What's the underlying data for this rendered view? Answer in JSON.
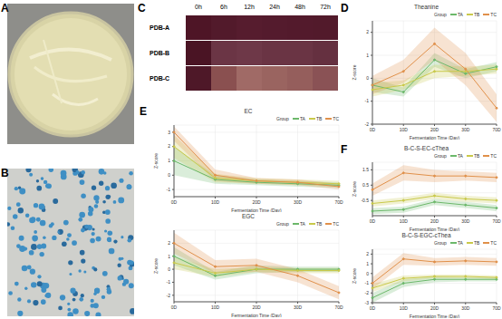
{
  "panel_labels": [
    "A",
    "B",
    "C",
    "D",
    "E",
    "F"
  ],
  "heatmap": {
    "columns": [
      "0h",
      "6h",
      "12h",
      "24h",
      "48h",
      "72h"
    ],
    "rows": [
      "PDB-A",
      "PDB-B",
      "PDB-C"
    ],
    "colors": [
      [
        "#4e1526",
        "#521a2b",
        "#561c2e",
        "#541b2d",
        "#531a2c",
        "#521a2b"
      ],
      [
        "#4a1424",
        "#6b3545",
        "#6e3848",
        "#6a3444",
        "#6a3444",
        "#653040"
      ],
      [
        "#4e1828",
        "#8a5050",
        "#a06a66",
        "#9a6460",
        "#955e5c",
        "#8a5255"
      ]
    ]
  },
  "chart_data": [
    {
      "type": "line",
      "title": "Theanine",
      "x_label": "Fermentation Time (Day)",
      "y_label": "Z-score",
      "legend": "upper right",
      "legend_title": "Group",
      "grid": true,
      "categories": [
        "0D",
        "10D",
        "20D",
        "30D",
        "70D"
      ],
      "ylim": [
        -2,
        2.5
      ],
      "yticks": [
        -2,
        -1,
        0,
        1,
        2
      ],
      "series": [
        {
          "name": "TA",
          "color": "#6cb86a",
          "values": [
            -0.3,
            -0.6,
            0.8,
            0.2,
            0.5
          ],
          "lower": [
            -0.6,
            -0.8,
            0.5,
            0,
            0.3
          ],
          "upper": [
            0,
            -0.4,
            1.1,
            0.4,
            0.7
          ]
        },
        {
          "name": "TB",
          "color": "#c9c94a",
          "values": [
            -0.5,
            -0.3,
            0.3,
            0.3,
            0.4
          ],
          "lower": [
            -0.8,
            -0.5,
            0,
            0.1,
            0.2
          ],
          "upper": [
            -0.2,
            -0.1,
            0.6,
            0.5,
            0.6
          ]
        },
        {
          "name": "TC",
          "color": "#e0904a",
          "values": [
            -0.3,
            0.3,
            1.5,
            0.4,
            -1.3
          ],
          "lower": [
            -0.7,
            -0.2,
            0.8,
            -0.3,
            -1.9
          ],
          "upper": [
            0.1,
            0.8,
            2.2,
            1.1,
            -0.7
          ]
        }
      ]
    },
    {
      "type": "line",
      "title": "EC",
      "x_label": "Fermentation Time (Day)",
      "y_label": "Z-score",
      "legend": "upper right",
      "legend_title": "Group",
      "grid": true,
      "categories": [
        "0D",
        "10D",
        "20D",
        "30D",
        "70D"
      ],
      "ylim": [
        -1.5,
        3.5
      ],
      "yticks": [
        -1,
        0,
        1,
        2,
        3
      ],
      "series": [
        {
          "name": "TA",
          "color": "#6cb86a",
          "values": [
            1.0,
            -0.3,
            -0.5,
            -0.6,
            -0.7
          ],
          "lower": [
            0,
            -0.6,
            -0.7,
            -0.8,
            -0.9
          ],
          "upper": [
            2,
            0,
            -0.3,
            -0.4,
            -0.5
          ]
        },
        {
          "name": "TB",
          "color": "#c9c94a",
          "values": [
            2.0,
            -0.2,
            -0.4,
            -0.5,
            -0.6
          ],
          "lower": [
            1.2,
            -0.5,
            -0.6,
            -0.7,
            -0.8
          ],
          "upper": [
            2.8,
            0.1,
            -0.2,
            -0.3,
            -0.4
          ]
        },
        {
          "name": "TC",
          "color": "#e0904a",
          "values": [
            3.0,
            0.0,
            -0.4,
            -0.5,
            -0.8
          ],
          "lower": [
            2.4,
            -0.4,
            -0.6,
            -0.7,
            -1.0
          ],
          "upper": [
            3.4,
            0.4,
            -0.2,
            -0.3,
            -0.6
          ]
        }
      ]
    },
    {
      "type": "line",
      "title": "EGC",
      "x_label": "Fermentation Time (Day)",
      "y_label": "Z-score",
      "legend": "upper right",
      "legend_title": "Group",
      "grid": true,
      "categories": [
        "0D",
        "10D",
        "20D",
        "30D",
        "70D"
      ],
      "ylim": [
        -2.5,
        3
      ],
      "yticks": [
        -2,
        -1,
        0,
        1,
        2
      ],
      "series": [
        {
          "name": "TA",
          "color": "#6cb86a",
          "values": [
            1.0,
            -0.5,
            0,
            0,
            0
          ],
          "lower": [
            0.3,
            -0.8,
            -0.3,
            -0.2,
            -0.2
          ],
          "upper": [
            1.7,
            -0.2,
            0.3,
            0.2,
            0.2
          ]
        },
        {
          "name": "TB",
          "color": "#c9c94a",
          "values": [
            0.5,
            -0.3,
            0,
            -0.1,
            -0.1
          ],
          "lower": [
            0,
            -0.6,
            -0.2,
            -0.3,
            -0.3
          ],
          "upper": [
            1,
            0,
            0.2,
            0.1,
            0.1
          ]
        },
        {
          "name": "TC",
          "color": "#e0904a",
          "values": [
            2.0,
            0.2,
            0.3,
            -0.5,
            -1.8
          ],
          "lower": [
            1.2,
            -0.3,
            -0.2,
            -1.0,
            -2.3
          ],
          "upper": [
            2.8,
            0.7,
            0.8,
            0,
            -1.3
          ]
        }
      ]
    },
    {
      "type": "line",
      "title": "B-C-S-EC-cThea",
      "x_label": "Fermentation Time (Day)",
      "y_label": "Z-score",
      "legend": "upper right",
      "legend_title": "Group",
      "grid": true,
      "categories": [
        "0D",
        "10D",
        "20D",
        "30D",
        "70D"
      ],
      "ylim": [
        -1.5,
        2
      ],
      "yticks": [
        -1,
        -0.5,
        0,
        0.5,
        1,
        1.5
      ],
      "series": [
        {
          "name": "TA",
          "color": "#6cb86a",
          "values": [
            -1.2,
            -1.1,
            -0.6,
            -0.8,
            -1.0
          ],
          "lower": [
            -1.4,
            -1.3,
            -0.8,
            -1.0,
            -1.2
          ],
          "upper": [
            -1.0,
            -0.9,
            -0.4,
            -0.6,
            -0.8
          ]
        },
        {
          "name": "TB",
          "color": "#c9c94a",
          "values": [
            -0.7,
            -0.5,
            -0.2,
            -0.4,
            -0.5
          ],
          "lower": [
            -0.9,
            -0.7,
            -0.4,
            -0.6,
            -0.7
          ],
          "upper": [
            -0.5,
            -0.3,
            0,
            -0.2,
            -0.3
          ]
        },
        {
          "name": "TC",
          "color": "#e0904a",
          "values": [
            0.2,
            1.3,
            1.1,
            1.1,
            1.0
          ],
          "lower": [
            -0.2,
            0.8,
            0.7,
            0.8,
            0.7
          ],
          "upper": [
            0.6,
            1.8,
            1.5,
            1.4,
            1.3
          ]
        }
      ]
    },
    {
      "type": "line",
      "title": "B-C-S-EGC-cThea",
      "x_label": "Fermentation Time (Day)",
      "y_label": "Z-score",
      "legend": "upper right",
      "legend_title": "Group",
      "grid": true,
      "categories": [
        "0D",
        "10D",
        "20D",
        "30D",
        "70D"
      ],
      "ylim": [
        -3,
        2.5
      ],
      "yticks": [
        -3,
        -2,
        -1,
        0,
        1,
        2
      ],
      "series": [
        {
          "name": "TA",
          "color": "#6cb86a",
          "values": [
            -2.5,
            -1.0,
            -0.6,
            -0.6,
            -0.6
          ],
          "lower": [
            -3,
            -1.4,
            -0.9,
            -0.8,
            -0.8
          ],
          "upper": [
            -2,
            -0.6,
            -0.3,
            -0.4,
            -0.4
          ]
        },
        {
          "name": "TB",
          "color": "#c9c94a",
          "values": [
            -1.5,
            -0.5,
            -0.3,
            -0.3,
            -0.4
          ],
          "lower": [
            -1.9,
            -0.8,
            -0.5,
            -0.5,
            -0.6
          ],
          "upper": [
            -1.1,
            -0.2,
            -0.1,
            -0.1,
            -0.2
          ]
        },
        {
          "name": "TC",
          "color": "#e0904a",
          "values": [
            -1.0,
            1.5,
            1.2,
            1.3,
            1.2
          ],
          "lower": [
            -1.6,
            0.9,
            0.8,
            0.9,
            0.8
          ],
          "upper": [
            -0.4,
            2.1,
            1.6,
            1.7,
            1.6
          ]
        }
      ]
    }
  ]
}
